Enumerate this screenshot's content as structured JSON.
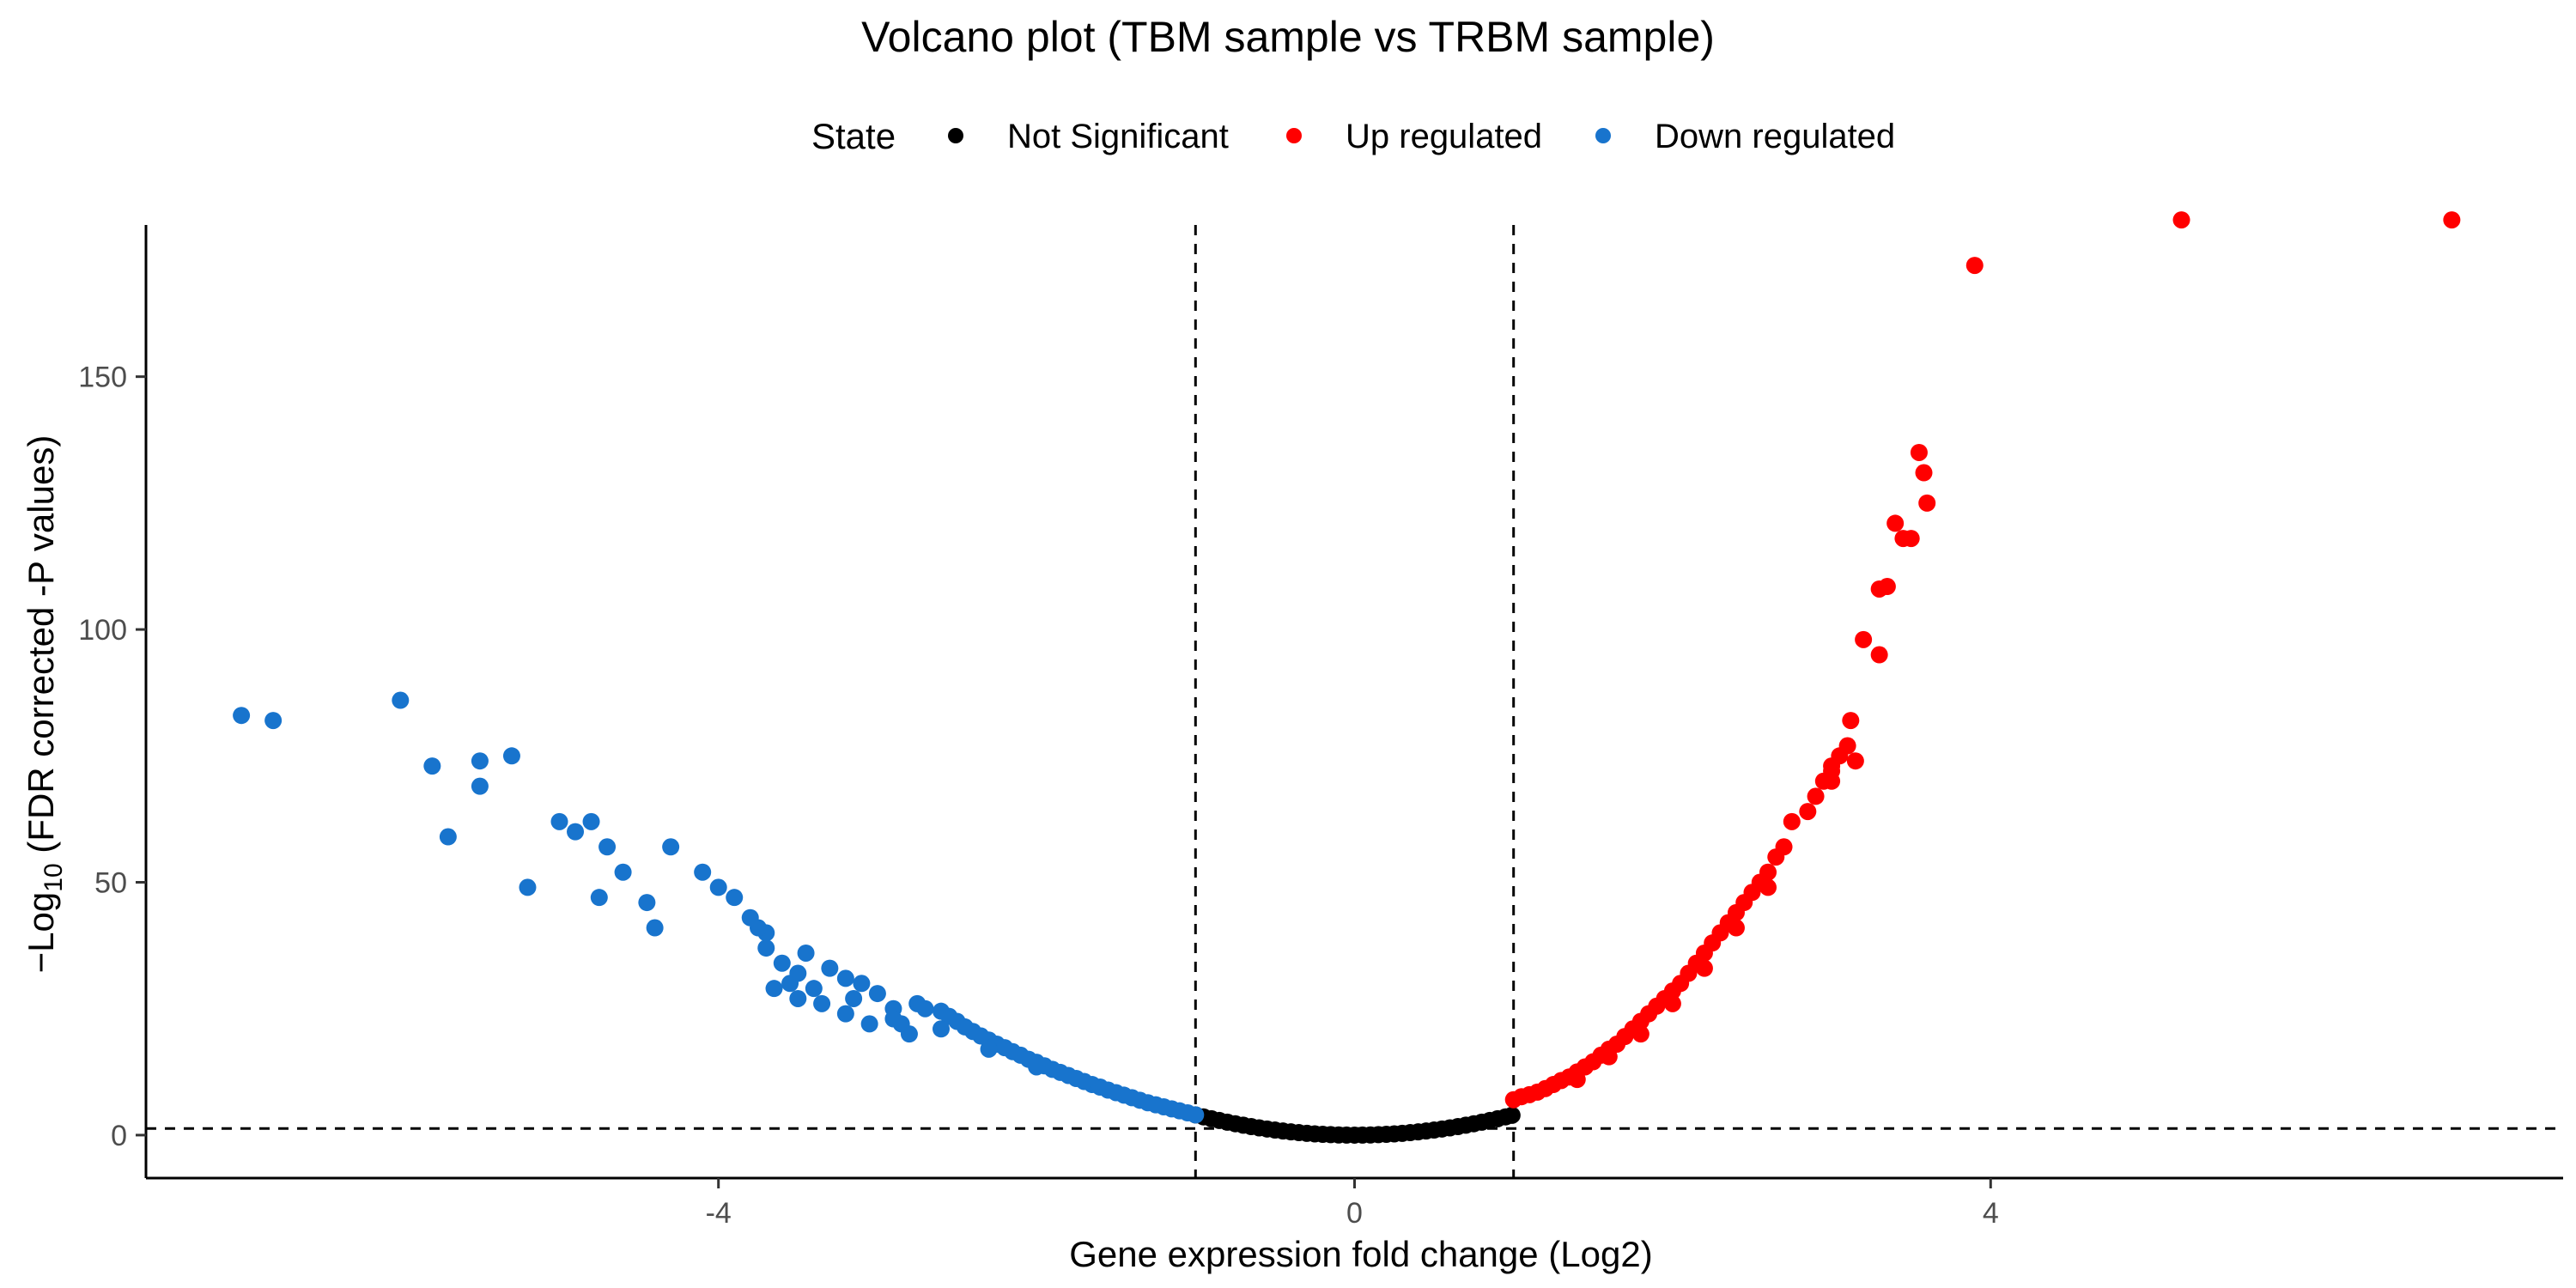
{
  "chart_data": {
    "type": "scatter",
    "title": "Volcano plot (TBM sample vs TRBM sample)",
    "xlabel": "Gene expression fold change (Log2)",
    "ylabel_prefix": "−Log",
    "ylabel_subscript": "10",
    "ylabel_suffix": " (FDR corrected -P values)",
    "xlim": [
      -7.6,
      7.6
    ],
    "ylim": [
      -8.5,
      180
    ],
    "x_ticks": [
      -4,
      0,
      4
    ],
    "y_ticks": [
      0,
      50,
      100,
      150
    ],
    "x_tick_labels": [
      "-4",
      "0",
      "4"
    ],
    "y_tick_labels": [
      "0",
      "50",
      "100",
      "150"
    ],
    "grid": false,
    "legend_position": "top",
    "legend": {
      "title": "State",
      "items": [
        {
          "label": "Not Significant",
          "color": "#000000"
        },
        {
          "label": "Up regulated",
          "color": "#ff0000"
        },
        {
          "label": "Down regulated",
          "color": "#1874cd"
        }
      ]
    },
    "reference_lines": {
      "vertical_x": [
        -1,
        1
      ],
      "horizontal_y": [
        1.3
      ]
    },
    "series": [
      {
        "name": "Not Significant",
        "color": "#000000",
        "curve_note": "dense band y ≈ 4·x² for |x| ≤ 1",
        "points": [
          [
            -1.0,
            4.0
          ],
          [
            -0.95,
            3.61
          ],
          [
            -0.9,
            3.24
          ],
          [
            -0.85,
            2.89
          ],
          [
            -0.8,
            2.56
          ],
          [
            -0.75,
            2.25
          ],
          [
            -0.7,
            1.96
          ],
          [
            -0.65,
            1.69
          ],
          [
            -0.6,
            1.44
          ],
          [
            -0.55,
            1.21
          ],
          [
            -0.5,
            1.0
          ],
          [
            -0.45,
            0.81
          ],
          [
            -0.4,
            0.64
          ],
          [
            -0.35,
            0.49
          ],
          [
            -0.3,
            0.36
          ],
          [
            -0.25,
            0.25
          ],
          [
            -0.2,
            0.16
          ],
          [
            -0.15,
            0.09
          ],
          [
            -0.1,
            0.04
          ],
          [
            -0.05,
            0.01
          ],
          [
            0.0,
            0.0
          ],
          [
            0.05,
            0.01
          ],
          [
            0.1,
            0.04
          ],
          [
            0.15,
            0.09
          ],
          [
            0.2,
            0.16
          ],
          [
            0.25,
            0.25
          ],
          [
            0.3,
            0.36
          ],
          [
            0.35,
            0.49
          ],
          [
            0.4,
            0.64
          ],
          [
            0.45,
            0.81
          ],
          [
            0.5,
            1.0
          ],
          [
            0.55,
            1.21
          ],
          [
            0.6,
            1.44
          ],
          [
            0.65,
            1.69
          ],
          [
            0.7,
            1.96
          ],
          [
            0.75,
            2.25
          ],
          [
            0.8,
            2.56
          ],
          [
            0.85,
            2.89
          ],
          [
            0.9,
            3.24
          ],
          [
            0.95,
            3.61
          ],
          [
            0.99,
            3.92
          ]
        ]
      },
      {
        "name": "Up regulated",
        "color": "#ff0000",
        "points": [
          [
            1.0,
            7.0
          ],
          [
            1.05,
            7.6
          ],
          [
            1.1,
            8.0
          ],
          [
            1.15,
            8.5
          ],
          [
            1.2,
            9.2
          ],
          [
            1.25,
            10.0
          ],
          [
            1.3,
            10.8
          ],
          [
            1.35,
            11.5
          ],
          [
            1.4,
            12.5
          ],
          [
            1.45,
            13.5
          ],
          [
            1.5,
            14.5
          ],
          [
            1.55,
            15.8
          ],
          [
            1.6,
            17.0
          ],
          [
            1.65,
            18.0
          ],
          [
            1.7,
            19.5
          ],
          [
            1.75,
            21.0
          ],
          [
            1.8,
            22.5
          ],
          [
            1.85,
            24.0
          ],
          [
            1.9,
            25.5
          ],
          [
            1.95,
            27.0
          ],
          [
            2.0,
            28.5
          ],
          [
            2.05,
            30.0
          ],
          [
            2.1,
            32.0
          ],
          [
            2.15,
            34.0
          ],
          [
            2.2,
            36.0
          ],
          [
            2.25,
            38.0
          ],
          [
            2.3,
            40.0
          ],
          [
            2.35,
            42.0
          ],
          [
            2.4,
            44.0
          ],
          [
            2.45,
            46.0
          ],
          [
            2.5,
            48.0
          ],
          [
            2.55,
            50.0
          ],
          [
            2.6,
            52.0
          ],
          [
            2.65,
            55.0
          ],
          [
            2.7,
            57.0
          ],
          [
            2.75,
            62.0
          ],
          [
            2.85,
            64.0
          ],
          [
            2.9,
            67.0
          ],
          [
            2.95,
            70.0
          ],
          [
            3.0,
            73.0
          ],
          [
            3.05,
            75.0
          ],
          [
            3.1,
            77.0
          ],
          [
            3.15,
            74.0
          ],
          [
            3.12,
            82.0
          ],
          [
            3.0,
            72.0
          ],
          [
            1.4,
            11.0
          ],
          [
            1.6,
            15.5
          ],
          [
            1.8,
            20.0
          ],
          [
            2.0,
            26.0
          ],
          [
            2.2,
            33.0
          ],
          [
            2.4,
            41.0
          ],
          [
            2.6,
            49.0
          ],
          [
            3.0,
            70.0
          ],
          [
            3.2,
            98.0
          ],
          [
            3.3,
            95.0
          ],
          [
            3.3,
            108.0
          ],
          [
            3.35,
            108.5
          ],
          [
            3.4,
            121.0
          ],
          [
            3.45,
            118.0
          ],
          [
            3.5,
            118.0
          ],
          [
            3.55,
            135.0
          ],
          [
            3.58,
            131.0
          ],
          [
            3.6,
            125.0
          ],
          [
            3.9,
            172.0
          ],
          [
            5.2,
            181.0
          ],
          [
            6.9,
            181.0
          ]
        ]
      },
      {
        "name": "Down regulated",
        "color": "#1874cd",
        "points": [
          [
            -1.0,
            4.0
          ],
          [
            -1.05,
            4.4
          ],
          [
            -1.1,
            4.8
          ],
          [
            -1.15,
            5.2
          ],
          [
            -1.2,
            5.6
          ],
          [
            -1.25,
            6.0
          ],
          [
            -1.3,
            6.4
          ],
          [
            -1.35,
            6.9
          ],
          [
            -1.4,
            7.4
          ],
          [
            -1.45,
            7.9
          ],
          [
            -1.5,
            8.4
          ],
          [
            -1.55,
            8.9
          ],
          [
            -1.6,
            9.5
          ],
          [
            -1.65,
            10.0
          ],
          [
            -1.7,
            10.6
          ],
          [
            -1.75,
            11.2
          ],
          [
            -1.8,
            11.8
          ],
          [
            -1.85,
            12.4
          ],
          [
            -1.9,
            13.0
          ],
          [
            -1.95,
            13.7
          ],
          [
            -2.0,
            14.4
          ],
          [
            -2.05,
            15.0
          ],
          [
            -2.1,
            15.8
          ],
          [
            -2.15,
            16.5
          ],
          [
            -2.2,
            17.3
          ],
          [
            -2.25,
            18.0
          ],
          [
            -2.3,
            18.8
          ],
          [
            -2.35,
            19.6
          ],
          [
            -2.4,
            20.5
          ],
          [
            -2.45,
            21.4
          ],
          [
            -2.5,
            22.5
          ],
          [
            -2.55,
            23.5
          ],
          [
            -2.6,
            24.5
          ],
          [
            -2.7,
            25.0
          ],
          [
            -2.75,
            26.0
          ],
          [
            -2.8,
            20.0
          ],
          [
            -2.85,
            22.0
          ],
          [
            -2.9,
            25.0
          ],
          [
            -3.0,
            28.0
          ],
          [
            -3.05,
            22.0
          ],
          [
            -3.1,
            30.0
          ],
          [
            -3.15,
            27.0
          ],
          [
            -3.2,
            24.0
          ],
          [
            -3.3,
            33.0
          ],
          [
            -3.35,
            26.0
          ],
          [
            -3.4,
            29.0
          ],
          [
            -3.45,
            36.0
          ],
          [
            -3.5,
            27.0
          ],
          [
            -3.55,
            30.0
          ],
          [
            -3.6,
            34.0
          ],
          [
            -3.65,
            29.0
          ],
          [
            -3.7,
            40.0
          ],
          [
            -3.75,
            41.0
          ],
          [
            -3.8,
            43.0
          ],
          [
            -3.9,
            47.0
          ],
          [
            -4.0,
            49.0
          ],
          [
            -4.1,
            52.0
          ],
          [
            -4.3,
            57.0
          ],
          [
            -4.4,
            41.0
          ],
          [
            -4.45,
            46.0
          ],
          [
            -4.6,
            52.0
          ],
          [
            -4.7,
            57.0
          ],
          [
            -4.75,
            47.0
          ],
          [
            -4.8,
            62.0
          ],
          [
            -4.9,
            60.0
          ],
          [
            -5.0,
            62.0
          ],
          [
            -5.2,
            49.0
          ],
          [
            -5.3,
            75.0
          ],
          [
            -5.5,
            69.0
          ],
          [
            -5.5,
            74.0
          ],
          [
            -5.7,
            59.0
          ],
          [
            -5.8,
            73.0
          ],
          [
            -6.0,
            86.0
          ],
          [
            -6.8,
            82.0
          ],
          [
            -7.0,
            83.0
          ],
          [
            -3.7,
            37.0
          ],
          [
            -3.5,
            32.0
          ],
          [
            -3.2,
            31.0
          ],
          [
            -2.9,
            23.0
          ],
          [
            -2.6,
            21.0
          ],
          [
            -2.3,
            17.0
          ],
          [
            -2.0,
            13.5
          ]
        ]
      }
    ]
  }
}
